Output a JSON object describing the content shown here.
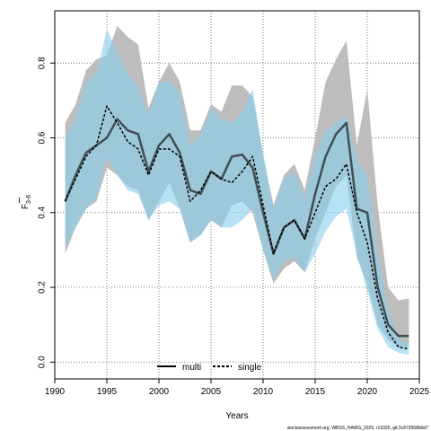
{
  "chart_data": {
    "type": "line",
    "ylabel_main": "F",
    "ylabel_sub": "3-6",
    "xlabel": "Years",
    "footnote": "stockassessment.org, WBSS_HAWG_2025, r19325, git:3c872568b0d7",
    "xlim": [
      1990,
      2025
    ],
    "ylim": [
      -0.045,
      0.94
    ],
    "x_ticks": [
      1990,
      1995,
      2000,
      2005,
      2010,
      2015,
      2020,
      2025
    ],
    "y_ticks": [
      0.0,
      0.2,
      0.4,
      0.6,
      0.8
    ],
    "y_tick_labels": [
      "0.0",
      "0.2",
      "0.4",
      "0.6",
      "0.8"
    ],
    "grid": true,
    "legend_position": "bottom-center",
    "series": [
      {
        "name": "multi",
        "color": "#000000",
        "band_color": "#bdbdbd",
        "line_style": "solid",
        "x": [
          1991,
          1992,
          1993,
          1994,
          1995,
          1996,
          1997,
          1998,
          1999,
          2000,
          2001,
          2002,
          2003,
          2004,
          2005,
          2006,
          2007,
          2008,
          2009,
          2010,
          2011,
          2012,
          2013,
          2014,
          2015,
          2016,
          2017,
          2018,
          2019,
          2020,
          2021,
          2022,
          2023,
          2024
        ],
        "values": [
          0.43,
          0.5,
          0.56,
          0.58,
          0.6,
          0.65,
          0.62,
          0.61,
          0.51,
          0.58,
          0.61,
          0.56,
          0.46,
          0.45,
          0.51,
          0.49,
          0.55,
          0.555,
          0.52,
          0.4,
          0.29,
          0.36,
          0.38,
          0.33,
          0.45,
          0.55,
          0.61,
          0.64,
          0.41,
          0.4,
          0.2,
          0.1,
          0.07,
          0.07
        ],
        "lower": [
          0.29,
          0.36,
          0.41,
          0.43,
          0.52,
          0.5,
          0.47,
          0.46,
          0.38,
          0.43,
          0.48,
          0.41,
          0.32,
          0.34,
          0.38,
          0.36,
          0.42,
          0.43,
          0.4,
          0.3,
          0.21,
          0.25,
          0.27,
          0.24,
          0.33,
          0.4,
          0.47,
          0.5,
          0.28,
          0.21,
          0.1,
          0.06,
          0.04,
          0.04
        ],
        "upper": [
          0.64,
          0.69,
          0.78,
          0.81,
          0.82,
          0.9,
          0.87,
          0.85,
          0.68,
          0.75,
          0.8,
          0.75,
          0.62,
          0.62,
          0.69,
          0.67,
          0.74,
          0.74,
          0.71,
          0.55,
          0.42,
          0.5,
          0.53,
          0.46,
          0.6,
          0.75,
          0.81,
          0.86,
          0.58,
          0.73,
          0.42,
          0.2,
          0.165,
          0.17
        ]
      },
      {
        "name": "single",
        "color": "#000000",
        "band_color": "#87ceeb",
        "line_style": "dashed",
        "x": [
          1991,
          1992,
          1993,
          1994,
          1995,
          1996,
          1997,
          1998,
          1999,
          2000,
          2001,
          2002,
          2003,
          2004,
          2005,
          2006,
          2007,
          2008,
          2009,
          2010,
          2011,
          2012,
          2013,
          2014,
          2015,
          2016,
          2017,
          2018,
          2019,
          2020,
          2021,
          2022,
          2023,
          2024
        ],
        "values": [
          0.43,
          0.49,
          0.55,
          0.58,
          0.685,
          0.64,
          0.59,
          0.57,
          0.5,
          0.57,
          0.57,
          0.55,
          0.43,
          0.46,
          0.51,
          0.49,
          0.48,
          0.51,
          0.55,
          0.42,
          0.29,
          0.36,
          0.38,
          0.33,
          0.4,
          0.47,
          0.49,
          0.53,
          0.4,
          0.32,
          0.17,
          0.08,
          0.04,
          0.035
        ],
        "lower": [
          0.31,
          0.36,
          0.41,
          0.44,
          0.55,
          0.5,
          0.46,
          0.45,
          0.38,
          0.42,
          0.43,
          0.41,
          0.32,
          0.34,
          0.38,
          0.36,
          0.36,
          0.38,
          0.41,
          0.3,
          0.22,
          0.27,
          0.28,
          0.24,
          0.29,
          0.35,
          0.39,
          0.41,
          0.29,
          0.19,
          0.09,
          0.04,
          0.025,
          0.02
        ],
        "upper": [
          0.6,
          0.65,
          0.75,
          0.77,
          0.89,
          0.83,
          0.77,
          0.74,
          0.66,
          0.75,
          0.75,
          0.72,
          0.58,
          0.61,
          0.68,
          0.65,
          0.64,
          0.67,
          0.73,
          0.56,
          0.41,
          0.49,
          0.51,
          0.44,
          0.55,
          0.62,
          0.64,
          0.66,
          0.54,
          0.5,
          0.29,
          0.14,
          0.06,
          0.05
        ]
      }
    ]
  }
}
